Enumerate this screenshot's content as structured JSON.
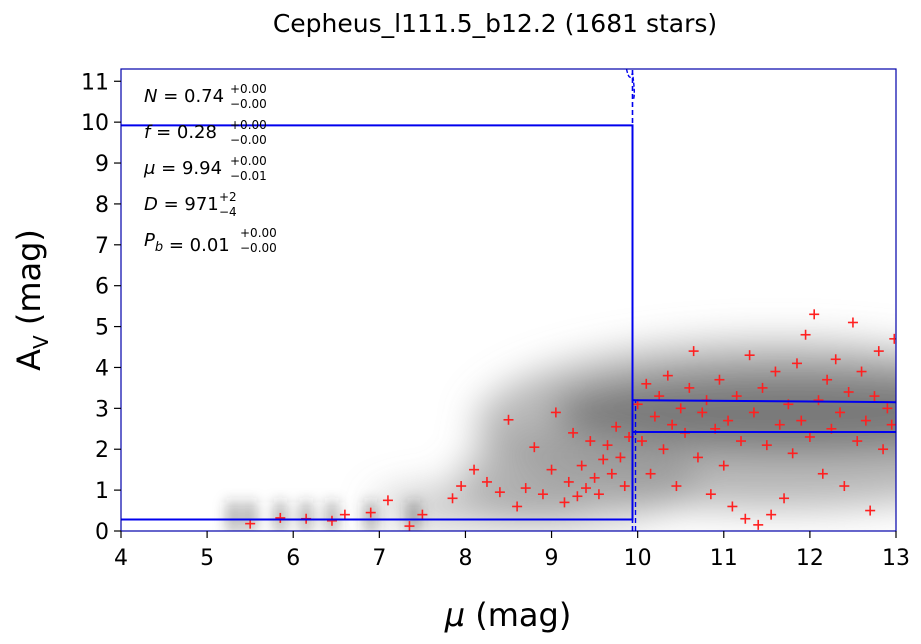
{
  "chart_data": {
    "type": "scatter",
    "title": "Cepheus_l111.5_b12.2 (1681 stars)",
    "xlabel_symbol": "μ",
    "xlabel_unit": "(mag)",
    "ylabel_main": "A",
    "ylabel_sub": "V",
    "ylabel_unit": "(mag)",
    "xlim": [
      4,
      13
    ],
    "ylim": [
      0,
      11.3
    ],
    "xticks": [
      4,
      5,
      6,
      7,
      8,
      9,
      10,
      11,
      12,
      13
    ],
    "yticks": [
      0,
      1,
      2,
      3,
      4,
      5,
      6,
      7,
      8,
      9,
      10,
      11
    ],
    "grid": false,
    "colors": {
      "points": "#ff2020",
      "model": "#0000ee",
      "background_density": "#8a8a8a"
    },
    "star_count": 1681,
    "cloud_distance_modulus": 9.94,
    "foreground_extinction": 0.28,
    "model_step": [
      {
        "x": 4.0,
        "y": 0.28
      },
      {
        "x": 9.94,
        "y": 0.28
      },
      {
        "x": 9.94,
        "y": 9.92
      },
      {
        "x": 4.0,
        "y": 9.92
      }
    ],
    "background_band": {
      "x_start": 9.94,
      "x_end": 13.0,
      "y_upper": [
        3.2,
        3.15
      ],
      "y_lower": [
        2.42,
        2.42
      ]
    },
    "annotations": [
      {
        "symbol": "N",
        "value": "0.74",
        "upper": "+0.00",
        "lower": "−0.00"
      },
      {
        "symbol": "f",
        "value": "0.28",
        "upper": "+0.00",
        "lower": "−0.00"
      },
      {
        "symbol": "μ",
        "value": "9.94",
        "upper": "+0.00",
        "lower": "−0.01"
      },
      {
        "symbol": "D",
        "value": "971",
        "upper": "+2",
        "lower": "−4"
      },
      {
        "symbol": "P_b",
        "value": "0.01",
        "upper": "+0.00",
        "lower": "−0.00"
      }
    ],
    "points_sample": [
      [
        5.5,
        0.18
      ],
      [
        5.85,
        0.32
      ],
      [
        6.15,
        0.3
      ],
      [
        6.45,
        0.25
      ],
      [
        6.6,
        0.4
      ],
      [
        6.9,
        0.45
      ],
      [
        7.1,
        0.75
      ],
      [
        7.35,
        0.12
      ],
      [
        7.5,
        0.4
      ],
      [
        7.85,
        0.8
      ],
      [
        7.95,
        1.1
      ],
      [
        8.1,
        1.5
      ],
      [
        8.25,
        1.2
      ],
      [
        8.4,
        0.95
      ],
      [
        8.5,
        2.72
      ],
      [
        8.6,
        0.6
      ],
      [
        8.7,
        1.05
      ],
      [
        8.8,
        2.05
      ],
      [
        8.9,
        0.9
      ],
      [
        9.0,
        1.5
      ],
      [
        9.05,
        2.9
      ],
      [
        9.15,
        0.7
      ],
      [
        9.2,
        1.2
      ],
      [
        9.25,
        2.4
      ],
      [
        9.3,
        0.85
      ],
      [
        9.35,
        1.6
      ],
      [
        9.4,
        1.05
      ],
      [
        9.45,
        2.2
      ],
      [
        9.5,
        1.3
      ],
      [
        9.55,
        0.9
      ],
      [
        9.6,
        1.75
      ],
      [
        9.65,
        2.1
      ],
      [
        9.7,
        1.4
      ],
      [
        9.75,
        2.55
      ],
      [
        9.8,
        1.8
      ],
      [
        9.85,
        1.1
      ],
      [
        9.9,
        2.3
      ],
      [
        10.0,
        3.1
      ],
      [
        10.05,
        2.2
      ],
      [
        10.1,
        3.6
      ],
      [
        10.15,
        1.4
      ],
      [
        10.2,
        2.8
      ],
      [
        10.25,
        3.3
      ],
      [
        10.3,
        2.0
      ],
      [
        10.35,
        3.8
      ],
      [
        10.4,
        2.6
      ],
      [
        10.45,
        1.1
      ],
      [
        10.5,
        3.0
      ],
      [
        10.55,
        2.4
      ],
      [
        10.6,
        3.5
      ],
      [
        10.65,
        4.4
      ],
      [
        10.7,
        1.8
      ],
      [
        10.75,
        2.9
      ],
      [
        10.8,
        3.2
      ],
      [
        10.85,
        0.9
      ],
      [
        10.9,
        2.5
      ],
      [
        10.95,
        3.7
      ],
      [
        11.0,
        1.6
      ],
      [
        11.05,
        2.7
      ],
      [
        11.1,
        0.6
      ],
      [
        11.15,
        3.3
      ],
      [
        11.2,
        2.2
      ],
      [
        11.25,
        0.3
      ],
      [
        11.3,
        4.3
      ],
      [
        11.35,
        2.9
      ],
      [
        11.4,
        0.15
      ],
      [
        11.45,
        3.5
      ],
      [
        11.5,
        2.1
      ],
      [
        11.55,
        0.4
      ],
      [
        11.6,
        3.9
      ],
      [
        11.65,
        2.6
      ],
      [
        11.7,
        0.8
      ],
      [
        11.75,
        3.1
      ],
      [
        11.8,
        1.9
      ],
      [
        11.85,
        4.1
      ],
      [
        11.9,
        2.7
      ],
      [
        11.95,
        4.8
      ],
      [
        12.0,
        2.3
      ],
      [
        12.05,
        5.3
      ],
      [
        12.1,
        3.2
      ],
      [
        12.15,
        1.4
      ],
      [
        12.2,
        3.7
      ],
      [
        12.25,
        2.5
      ],
      [
        12.3,
        4.2
      ],
      [
        12.35,
        2.9
      ],
      [
        12.4,
        1.1
      ],
      [
        12.45,
        3.4
      ],
      [
        12.5,
        5.1
      ],
      [
        12.55,
        2.2
      ],
      [
        12.6,
        3.9
      ],
      [
        12.65,
        2.7
      ],
      [
        12.7,
        0.5
      ],
      [
        12.75,
        3.3
      ],
      [
        12.8,
        4.4
      ],
      [
        12.85,
        2.0
      ],
      [
        12.9,
        3.0
      ],
      [
        12.95,
        2.6
      ],
      [
        12.98,
        4.7
      ]
    ]
  }
}
